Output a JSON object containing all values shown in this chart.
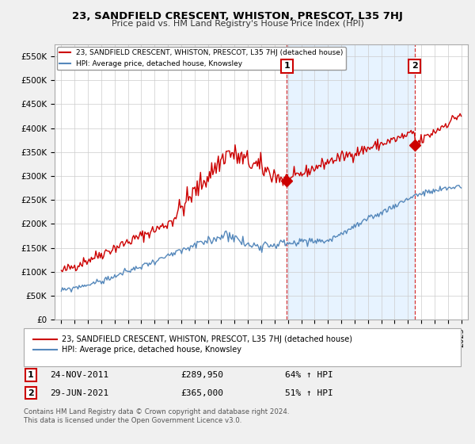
{
  "title": "23, SANDFIELD CRESCENT, WHISTON, PRESCOT, L35 7HJ",
  "subtitle": "Price paid vs. HM Land Registry's House Price Index (HPI)",
  "ylabel_ticks": [
    "£0",
    "£50K",
    "£100K",
    "£150K",
    "£200K",
    "£250K",
    "£300K",
    "£350K",
    "£400K",
    "£450K",
    "£500K",
    "£550K"
  ],
  "ytick_values": [
    0,
    50000,
    100000,
    150000,
    200000,
    250000,
    300000,
    350000,
    400000,
    450000,
    500000,
    550000
  ],
  "ylim": [
    0,
    575000
  ],
  "red_color": "#cc0000",
  "blue_color": "#5588bb",
  "shade_color": "#ddeeff",
  "marker1_date": 2011.92,
  "marker1_value": 289950,
  "marker2_date": 2021.5,
  "marker2_value": 365000,
  "marker1_label": "1",
  "marker2_label": "2",
  "legend_red": "23, SANDFIELD CRESCENT, WHISTON, PRESCOT, L35 7HJ (detached house)",
  "legend_blue": "HPI: Average price, detached house, Knowsley",
  "table_rows": [
    {
      "num": "1",
      "date": "24-NOV-2011",
      "price": "£289,950",
      "pct": "64% ↑ HPI"
    },
    {
      "num": "2",
      "date": "29-JUN-2021",
      "price": "£365,000",
      "pct": "51% ↑ HPI"
    }
  ],
  "footnote": "Contains HM Land Registry data © Crown copyright and database right 2024.\nThis data is licensed under the Open Government Licence v3.0.",
  "background_color": "#f0f0f0",
  "plot_bg_color": "#ffffff",
  "grid_color": "#cccccc"
}
